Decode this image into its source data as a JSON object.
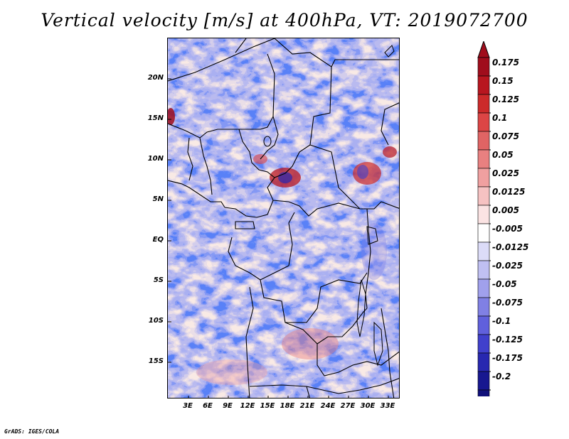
{
  "title": "Vertical velocity [m/s] at 400hPa, VT: 2019072700",
  "lat_labels": [
    "20N",
    "15N",
    "10N",
    "5N",
    "EQ",
    "5S",
    "10S",
    "15S"
  ],
  "lon_labels": [
    "3E",
    "6E",
    "9E",
    "12E",
    "15E",
    "18E",
    "21E",
    "24E",
    "27E",
    "30E",
    "33E"
  ],
  "colorbar": {
    "labels": [
      "0.175",
      "0.15",
      "0.125",
      "0.1",
      "0.075",
      "0.05",
      "0.025",
      "0.0125",
      "0.005",
      "-0.005",
      "-0.0125",
      "-0.025",
      "-0.05",
      "-0.075",
      "-0.1",
      "-0.125",
      "-0.175",
      "-0.2"
    ],
    "colors": [
      "#a00d1c",
      "#b8161f",
      "#cc2a2a",
      "#dc4545",
      "#e06464",
      "#e88080",
      "#f0a0a0",
      "#f6c2c2",
      "#fbe3e3",
      "#ffffff",
      "#dcdcf8",
      "#c0c0f2",
      "#a0a0ec",
      "#8080e4",
      "#6060dc",
      "#4040cc",
      "#2828b0",
      "#181890",
      "#10107a"
    ],
    "top_color": "#a00d1c",
    "bottom_color": "#10107a"
  },
  "footer": "GrADS: IGES/COLA"
}
